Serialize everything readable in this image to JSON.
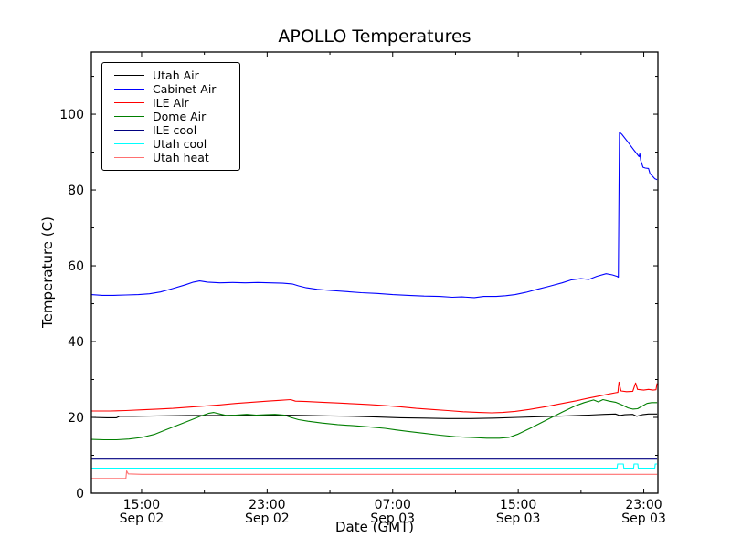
{
  "figure": {
    "background": "#ffffff",
    "frame_color": "#000000"
  },
  "chart_data": {
    "type": "line",
    "title": "APOLLO Temperatures",
    "xlabel": "Date (GMT)",
    "ylabel": "Temperature (C)",
    "x_unit": "hours since Sep 02 00:00 GMT",
    "xlim": [
      11.8,
      47.9
    ],
    "ylim": [
      0,
      116.4
    ],
    "grid": false,
    "legend_position": "upper left",
    "x_major_ticks": [
      {
        "t": 15,
        "time": "15:00",
        "date": "Sep 02"
      },
      {
        "t": 23,
        "time": "23:00",
        "date": "Sep 02"
      },
      {
        "t": 31,
        "time": "07:00",
        "date": "Sep 03"
      },
      {
        "t": 39,
        "time": "15:00",
        "date": "Sep 03"
      },
      {
        "t": 47,
        "time": "23:00",
        "date": "Sep 03"
      }
    ],
    "x_minor_ticks": [
      19,
      27,
      35,
      43
    ],
    "y_major_ticks": [
      0,
      20,
      40,
      60,
      80,
      100
    ],
    "y_minor_ticks": [
      10,
      30,
      50,
      70,
      90,
      110
    ],
    "series": [
      {
        "name": "Utah Air",
        "color": "#000000",
        "points": [
          [
            11.8,
            20.0
          ],
          [
            12.8,
            19.9
          ],
          [
            13.4,
            19.9
          ],
          [
            13.6,
            20.3
          ],
          [
            14.5,
            20.3
          ],
          [
            16.0,
            20.4
          ],
          [
            18.0,
            20.5
          ],
          [
            20.0,
            20.5
          ],
          [
            22.0,
            20.6
          ],
          [
            24.0,
            20.6
          ],
          [
            25.5,
            20.5
          ],
          [
            27.0,
            20.4
          ],
          [
            28.5,
            20.3
          ],
          [
            30.0,
            20.1
          ],
          [
            31.5,
            19.9
          ],
          [
            33.0,
            19.8
          ],
          [
            34.5,
            19.7
          ],
          [
            36.0,
            19.7
          ],
          [
            37.5,
            19.8
          ],
          [
            39.0,
            20.0
          ],
          [
            40.5,
            20.2
          ],
          [
            42.0,
            20.4
          ],
          [
            43.5,
            20.6
          ],
          [
            44.5,
            20.8
          ],
          [
            45.2,
            20.9
          ],
          [
            45.45,
            20.5
          ],
          [
            45.8,
            20.7
          ],
          [
            46.3,
            20.8
          ],
          [
            46.55,
            20.3
          ],
          [
            46.9,
            20.7
          ],
          [
            47.3,
            20.9
          ],
          [
            47.85,
            20.9
          ]
        ]
      },
      {
        "name": "Cabinet Air",
        "color": "#0000ff",
        "points": [
          [
            11.8,
            52.4
          ],
          [
            12.5,
            52.2
          ],
          [
            13.2,
            52.2
          ],
          [
            14.0,
            52.3
          ],
          [
            14.8,
            52.4
          ],
          [
            15.5,
            52.6
          ],
          [
            16.2,
            53.1
          ],
          [
            17.0,
            54.0
          ],
          [
            17.8,
            55.0
          ],
          [
            18.3,
            55.7
          ],
          [
            18.7,
            56.0
          ],
          [
            19.2,
            55.7
          ],
          [
            20.0,
            55.5
          ],
          [
            20.8,
            55.6
          ],
          [
            21.6,
            55.5
          ],
          [
            22.4,
            55.6
          ],
          [
            23.2,
            55.5
          ],
          [
            24.0,
            55.4
          ],
          [
            24.6,
            55.2
          ],
          [
            25.0,
            54.7
          ],
          [
            25.5,
            54.2
          ],
          [
            26.2,
            53.8
          ],
          [
            27.0,
            53.5
          ],
          [
            28.0,
            53.2
          ],
          [
            29.0,
            52.9
          ],
          [
            30.0,
            52.7
          ],
          [
            31.0,
            52.4
          ],
          [
            32.0,
            52.2
          ],
          [
            33.0,
            52.0
          ],
          [
            34.0,
            51.9
          ],
          [
            34.8,
            51.7
          ],
          [
            35.4,
            51.8
          ],
          [
            36.2,
            51.6
          ],
          [
            36.8,
            51.9
          ],
          [
            37.6,
            51.9
          ],
          [
            38.2,
            52.1
          ],
          [
            38.8,
            52.4
          ],
          [
            39.5,
            53.0
          ],
          [
            40.2,
            53.8
          ],
          [
            41.0,
            54.6
          ],
          [
            41.8,
            55.5
          ],
          [
            42.4,
            56.3
          ],
          [
            43.0,
            56.6
          ],
          [
            43.5,
            56.4
          ],
          [
            44.0,
            57.2
          ],
          [
            44.6,
            57.9
          ],
          [
            45.0,
            57.6
          ],
          [
            45.3,
            57.2
          ],
          [
            45.38,
            57.0
          ],
          [
            45.45,
            95.3
          ],
          [
            45.6,
            94.7
          ],
          [
            46.0,
            92.6
          ],
          [
            46.4,
            90.4
          ],
          [
            46.7,
            88.8
          ],
          [
            46.75,
            89.6
          ],
          [
            46.8,
            87.9
          ],
          [
            46.95,
            86.0
          ],
          [
            47.1,
            85.8
          ],
          [
            47.3,
            85.7
          ],
          [
            47.4,
            84.3
          ],
          [
            47.55,
            83.7
          ],
          [
            47.7,
            83.0
          ],
          [
            47.85,
            82.7
          ]
        ]
      },
      {
        "name": "ILE Air",
        "color": "#ff0000",
        "points": [
          [
            11.8,
            21.7
          ],
          [
            13.0,
            21.7
          ],
          [
            14.0,
            21.8
          ],
          [
            15.0,
            22.0
          ],
          [
            16.0,
            22.2
          ],
          [
            17.0,
            22.4
          ],
          [
            18.0,
            22.7
          ],
          [
            19.0,
            23.0
          ],
          [
            20.0,
            23.3
          ],
          [
            21.0,
            23.7
          ],
          [
            22.0,
            24.0
          ],
          [
            23.0,
            24.3
          ],
          [
            23.8,
            24.5
          ],
          [
            24.5,
            24.7
          ],
          [
            24.8,
            24.3
          ],
          [
            25.5,
            24.2
          ],
          [
            26.5,
            24.0
          ],
          [
            27.5,
            23.8
          ],
          [
            28.5,
            23.6
          ],
          [
            29.5,
            23.4
          ],
          [
            30.5,
            23.1
          ],
          [
            31.5,
            22.8
          ],
          [
            32.5,
            22.4
          ],
          [
            33.5,
            22.1
          ],
          [
            34.5,
            21.8
          ],
          [
            35.5,
            21.5
          ],
          [
            36.5,
            21.3
          ],
          [
            37.3,
            21.2
          ],
          [
            38.0,
            21.3
          ],
          [
            38.8,
            21.6
          ],
          [
            39.7,
            22.1
          ],
          [
            40.7,
            22.8
          ],
          [
            41.7,
            23.6
          ],
          [
            42.7,
            24.4
          ],
          [
            43.5,
            25.1
          ],
          [
            44.2,
            25.7
          ],
          [
            44.8,
            26.2
          ],
          [
            45.2,
            26.5
          ],
          [
            45.35,
            26.6
          ],
          [
            45.42,
            29.3
          ],
          [
            45.55,
            27.0
          ],
          [
            45.9,
            26.8
          ],
          [
            46.3,
            26.9
          ],
          [
            46.48,
            29.1
          ],
          [
            46.6,
            27.4
          ],
          [
            47.0,
            27.2
          ],
          [
            47.3,
            27.4
          ],
          [
            47.6,
            27.2
          ],
          [
            47.78,
            27.3
          ],
          [
            47.85,
            29.0
          ]
        ]
      },
      {
        "name": "Dome Air",
        "color": "#007f00",
        "points": [
          [
            11.8,
            14.2
          ],
          [
            12.6,
            14.1
          ],
          [
            13.4,
            14.1
          ],
          [
            14.2,
            14.3
          ],
          [
            15.0,
            14.7
          ],
          [
            15.8,
            15.5
          ],
          [
            16.6,
            16.8
          ],
          [
            17.4,
            18.1
          ],
          [
            18.2,
            19.4
          ],
          [
            18.8,
            20.4
          ],
          [
            19.3,
            21.1
          ],
          [
            19.6,
            21.3
          ],
          [
            20.0,
            20.9
          ],
          [
            20.4,
            20.5
          ],
          [
            21.0,
            20.6
          ],
          [
            21.7,
            20.8
          ],
          [
            22.3,
            20.6
          ],
          [
            22.9,
            20.7
          ],
          [
            23.5,
            20.8
          ],
          [
            24.1,
            20.6
          ],
          [
            24.5,
            20.0
          ],
          [
            25.0,
            19.4
          ],
          [
            25.6,
            19.0
          ],
          [
            26.5,
            18.5
          ],
          [
            27.5,
            18.1
          ],
          [
            28.5,
            17.8
          ],
          [
            29.5,
            17.5
          ],
          [
            30.5,
            17.1
          ],
          [
            31.2,
            16.7
          ],
          [
            32.0,
            16.3
          ],
          [
            33.0,
            15.8
          ],
          [
            34.0,
            15.3
          ],
          [
            35.0,
            14.9
          ],
          [
            36.0,
            14.7
          ],
          [
            37.0,
            14.5
          ],
          [
            37.8,
            14.5
          ],
          [
            38.4,
            14.7
          ],
          [
            39.0,
            15.6
          ],
          [
            39.8,
            17.2
          ],
          [
            40.8,
            19.3
          ],
          [
            41.8,
            21.4
          ],
          [
            42.6,
            23.0
          ],
          [
            43.2,
            23.9
          ],
          [
            43.8,
            24.6
          ],
          [
            44.1,
            24.1
          ],
          [
            44.4,
            24.7
          ],
          [
            44.8,
            24.3
          ],
          [
            45.2,
            24.0
          ],
          [
            45.6,
            23.3
          ],
          [
            46.0,
            22.5
          ],
          [
            46.3,
            22.2
          ],
          [
            46.6,
            22.3
          ],
          [
            46.9,
            23.0
          ],
          [
            47.2,
            23.7
          ],
          [
            47.5,
            23.9
          ],
          [
            47.85,
            23.9
          ]
        ]
      },
      {
        "name": "ILE cool",
        "color": "#000080",
        "points": [
          [
            11.8,
            9.0
          ],
          [
            47.85,
            9.0
          ]
        ]
      },
      {
        "name": "Utah cool",
        "color": "#00ffff",
        "points": [
          [
            11.8,
            6.6
          ],
          [
            45.3,
            6.6
          ],
          [
            45.33,
            7.7
          ],
          [
            45.7,
            7.7
          ],
          [
            45.73,
            6.6
          ],
          [
            46.35,
            6.6
          ],
          [
            46.38,
            7.7
          ],
          [
            46.62,
            7.7
          ],
          [
            46.65,
            6.6
          ],
          [
            47.7,
            6.6
          ],
          [
            47.73,
            7.7
          ],
          [
            47.85,
            7.7
          ]
        ]
      },
      {
        "name": "Utah heat",
        "color": "#ff7070",
        "points": [
          [
            11.8,
            3.9
          ],
          [
            14.0,
            3.9
          ],
          [
            14.05,
            5.9
          ],
          [
            14.15,
            5.1
          ],
          [
            15.0,
            5.0
          ],
          [
            47.85,
            5.0
          ]
        ]
      }
    ]
  }
}
